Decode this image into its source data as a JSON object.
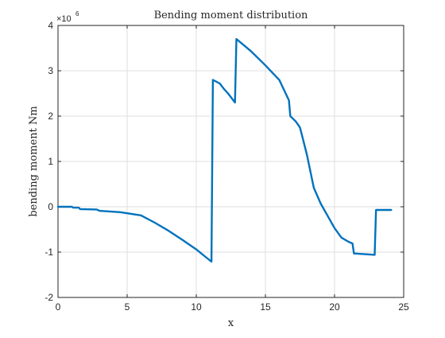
{
  "chart_data": {
    "type": "line",
    "title": "Bending moment distribution",
    "xlabel": "x",
    "ylabel": "bending moment  Nm",
    "multiplier_base": "×10",
    "multiplier_exp": "6",
    "xlim": [
      0,
      25
    ],
    "ylim": [
      -2,
      4
    ],
    "xticks": [
      0,
      5,
      10,
      15,
      20,
      25
    ],
    "yticks": [
      -2,
      -1,
      0,
      1,
      2,
      3,
      4
    ],
    "xtick_labels": [
      "0",
      "5",
      "10",
      "15",
      "20",
      "25"
    ],
    "ytick_labels": [
      "-2",
      "-1",
      "0",
      "1",
      "2",
      "3",
      "4"
    ],
    "grid": true,
    "line_color": "#0072BD",
    "series": [
      {
        "x": [
          0,
          1,
          1.1,
          1.5,
          1.6,
          2.8,
          3.0,
          4.5,
          6.0,
          7.0,
          8.0,
          9.0,
          10.0,
          11.1,
          11.2,
          11.7,
          12.0,
          12.3,
          12.8,
          12.9,
          13.5,
          14.0,
          15.0,
          16.0,
          16.7,
          16.8,
          17.2,
          17.5,
          18.0,
          18.5,
          19.0,
          20.0,
          20.5,
          21.0,
          21.3,
          21.4,
          22.5,
          22.9,
          23.0,
          24.1
        ],
        "y": [
          0.0,
          0.0,
          -0.02,
          -0.02,
          -0.05,
          -0.06,
          -0.09,
          -0.12,
          -0.19,
          -0.35,
          -0.53,
          -0.73,
          -0.94,
          -1.21,
          2.8,
          2.72,
          2.6,
          2.5,
          2.3,
          3.7,
          3.55,
          3.42,
          3.12,
          2.8,
          2.35,
          2.0,
          1.88,
          1.75,
          1.15,
          0.42,
          0.07,
          -0.47,
          -0.68,
          -0.77,
          -0.81,
          -1.03,
          -1.05,
          -1.06,
          -0.07,
          -0.07
        ]
      }
    ]
  }
}
